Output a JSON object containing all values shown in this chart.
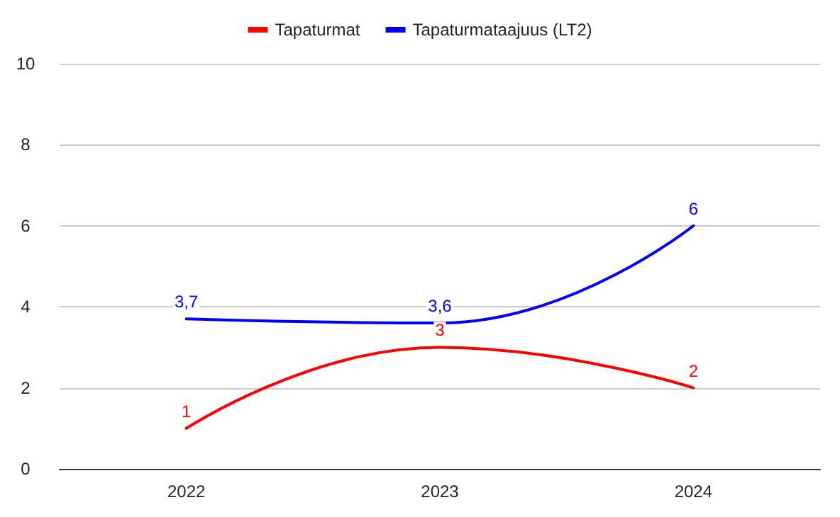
{
  "chart_data": {
    "type": "line",
    "categories": [
      "2022",
      "2023",
      "2024"
    ],
    "series": [
      {
        "name": "Tapaturmat",
        "color": "#ff0000",
        "values": [
          1,
          3,
          2
        ],
        "value_labels": [
          "1",
          "3",
          "2"
        ]
      },
      {
        "name": "Tapaturmataajuus (LT2)",
        "color": "#0000ff",
        "values": [
          3.7,
          3.6,
          6
        ],
        "value_labels": [
          "3,7",
          "3,6",
          "6"
        ]
      }
    ],
    "ylim": [
      0,
      10
    ],
    "yticks": [
      0,
      2,
      4,
      6,
      8,
      10
    ],
    "grid": "y",
    "legend": "top",
    "marker": "none",
    "line_style": "solid"
  }
}
